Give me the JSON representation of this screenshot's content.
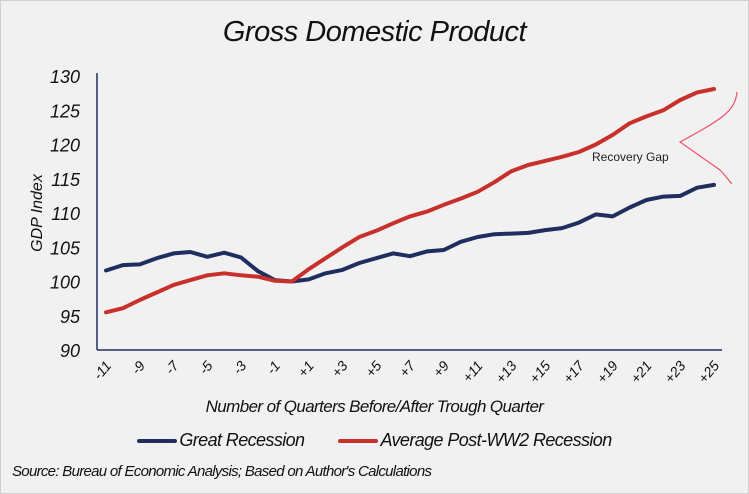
{
  "chart_data": {
    "type": "line",
    "title": "Gross Domestic Product",
    "xlabel": "Number of Quarters Before/After Trough Quarter",
    "ylabel": "GDP Index",
    "ylim": [
      90,
      130
    ],
    "yticks": [
      90,
      95,
      100,
      105,
      110,
      115,
      120,
      125,
      130
    ],
    "x": [
      -11,
      -10,
      -9,
      -8,
      -7,
      -6,
      -5,
      -4,
      -3,
      -2,
      -1,
      0,
      1,
      2,
      3,
      4,
      5,
      6,
      7,
      8,
      9,
      10,
      11,
      12,
      13,
      14,
      15,
      16,
      17,
      18,
      19,
      20,
      21,
      22,
      23,
      24,
      25
    ],
    "xticks": [
      "-11",
      "-9",
      "-7",
      "-5",
      "-3",
      "-1",
      "+1",
      "+3",
      "+5",
      "+7",
      "+9",
      "+11",
      "+13",
      "+15",
      "+17",
      "+19",
      "+21",
      "+23",
      "+25"
    ],
    "xtick_values": [
      -11,
      -9,
      -7,
      -5,
      -3,
      -1,
      1,
      3,
      5,
      7,
      9,
      11,
      13,
      15,
      17,
      19,
      21,
      23,
      25
    ],
    "grid": false,
    "legend_position": "bottom",
    "series": [
      {
        "name": "Great Recession",
        "color": "#1f2e5e",
        "values": [
          101.6,
          102.4,
          102.5,
          103.4,
          104.1,
          104.3,
          103.6,
          104.2,
          103.5,
          101.5,
          100.2,
          100.0,
          100.3,
          101.2,
          101.7,
          102.7,
          103.4,
          104.1,
          103.7,
          104.4,
          104.6,
          105.8,
          106.5,
          106.9,
          107.0,
          107.1,
          107.5,
          107.8,
          108.6,
          109.8,
          109.5,
          110.8,
          111.9,
          112.4,
          112.5,
          113.7,
          114.1
        ]
      },
      {
        "name": "Average Post-WW2 Recession",
        "color": "#c7302b",
        "values": [
          95.5,
          96.1,
          97.3,
          98.4,
          99.5,
          100.2,
          100.9,
          101.2,
          100.9,
          100.7,
          100.1,
          100.0,
          101.8,
          103.4,
          105.0,
          106.5,
          107.4,
          108.5,
          109.5,
          110.2,
          111.2,
          112.1,
          113.1,
          114.5,
          116.1,
          117.0,
          117.6,
          118.2,
          118.9,
          120.0,
          121.4,
          123.1,
          124.1,
          125.0,
          126.5,
          127.6,
          128.1
        ]
      }
    ],
    "annotation": {
      "text": "Recovery Gap",
      "color": "#f0506a"
    }
  },
  "source": "Source: Bureau of Economic Analysis; Based on Author's Calculations"
}
